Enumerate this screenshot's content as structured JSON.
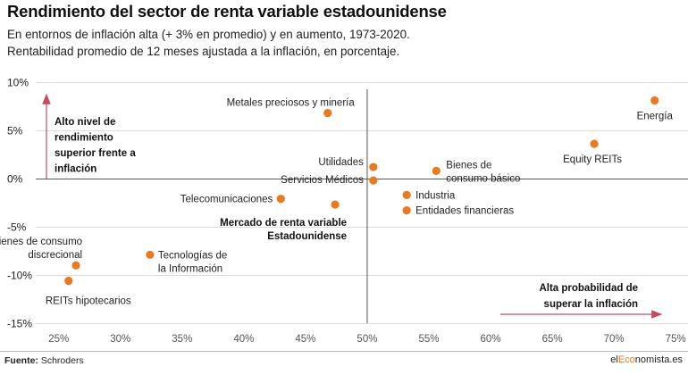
{
  "title": "Rendimiento del sector de renta variable estadounidense",
  "subtitle_1": "En entornos de inflación alta (+ 3% en promedio) y en aumento, 1973-2020.",
  "subtitle_2": "Rentabilidad promedio de 12 meses ajustada a la inflación, en porcentaje.",
  "footer": {
    "source_label": "Fuente:",
    "source_value": "Schroders",
    "brand_prefix": "el",
    "brand_highlight": "Eco",
    "brand_suffix": "nomista.es"
  },
  "colors": {
    "points": "#ea7a1f",
    "arrows": "#c94a5f",
    "grid": "#dcdcdc",
    "axis": "#555555"
  },
  "chart_data": {
    "type": "scatter",
    "title": "",
    "xlabel": "",
    "ylabel": "",
    "xlim": [
      23.5,
      76
    ],
    "ylim": [
      -15,
      10
    ],
    "x_ticks": [
      25,
      30,
      35,
      40,
      45,
      50,
      55,
      60,
      65,
      70,
      75
    ],
    "x_tick_labels": [
      "25%",
      "30%",
      "35%",
      "40%",
      "45%",
      "50%",
      "55%",
      "60%",
      "65%",
      "70%",
      "75%"
    ],
    "y_ticks": [
      10,
      5,
      0,
      -5,
      -10,
      -15
    ],
    "y_tick_labels": [
      "10%",
      "5%",
      "0%",
      "-5%",
      "-10%",
      "-15%"
    ],
    "reference_lines": {
      "x": 50,
      "y": 0
    },
    "grid": true,
    "points": [
      {
        "label": [
          "Energía"
        ],
        "x": 73.3,
        "y": 8.1
      },
      {
        "label": [
          "Metales preciosos y minería"
        ],
        "x": 46.8,
        "y": 6.8
      },
      {
        "label": [
          "Equity REITs"
        ],
        "x": 68.4,
        "y": 3.6
      },
      {
        "label": [
          "Bienes de",
          "consumo básico"
        ],
        "x": 55.6,
        "y": 0.8
      },
      {
        "label": [
          "Utilidades"
        ],
        "x": 50.5,
        "y": 1.2
      },
      {
        "label": [
          "Servicios Médicos"
        ],
        "x": 50.5,
        "y": -0.2
      },
      {
        "label": [
          "Industria"
        ],
        "x": 53.2,
        "y": -1.7
      },
      {
        "label": [
          "Entidades financieras"
        ],
        "x": 53.2,
        "y": -3.3
      },
      {
        "label": [
          "Telecomunicaciones"
        ],
        "x": 43.0,
        "y": -2.1
      },
      {
        "label": [
          "Mercado de renta variable",
          "Estadounidense"
        ],
        "x": 47.4,
        "y": -2.7,
        "bold": true
      },
      {
        "label": [
          "Bienes de consumo",
          "discrecional"
        ],
        "x": 26.4,
        "y": -9.0
      },
      {
        "label": [
          "Tecnologías de",
          "la Información"
        ],
        "x": 32.4,
        "y": -7.9
      },
      {
        "label": [
          "REITs hipotecarios"
        ],
        "x": 25.8,
        "y": -10.6
      }
    ],
    "annotations": [
      {
        "lines": [
          "Alto nivel de",
          "rendimiento",
          "superior frente a",
          "inflación"
        ],
        "direction": "up"
      },
      {
        "lines": [
          "Alta probabilidad de",
          "superar la inflación"
        ],
        "direction": "right"
      }
    ]
  }
}
